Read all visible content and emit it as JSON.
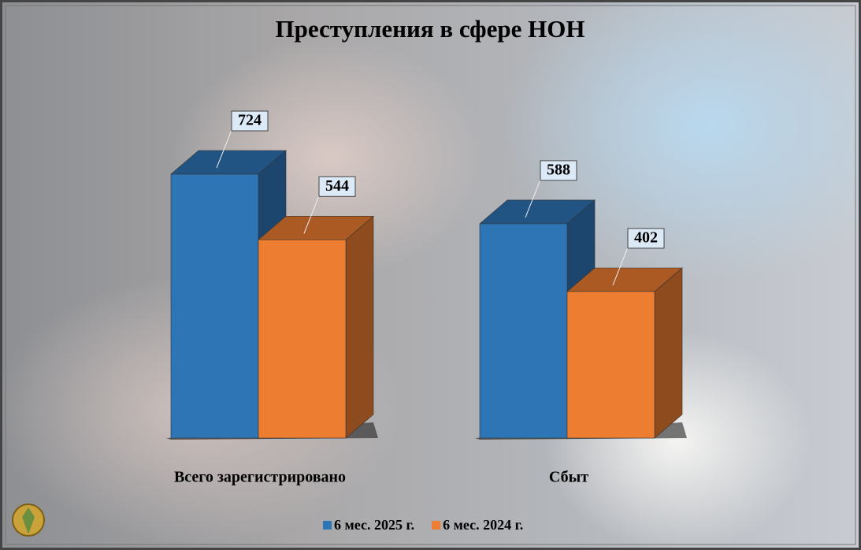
{
  "chart_data": {
    "type": "bar3d",
    "title": "Преступления в сфере НОН",
    "categories": [
      "Всего зарегистрировано",
      "Сбыт"
    ],
    "series": [
      {
        "name": "6 мес. 2025 г.",
        "color": "#2e75b6",
        "values": [
          724,
          588
        ]
      },
      {
        "name": "6 мес. 2024 г.",
        "color": "#ed7d31",
        "values": [
          544,
          402
        ]
      }
    ],
    "legend": "bottom"
  }
}
